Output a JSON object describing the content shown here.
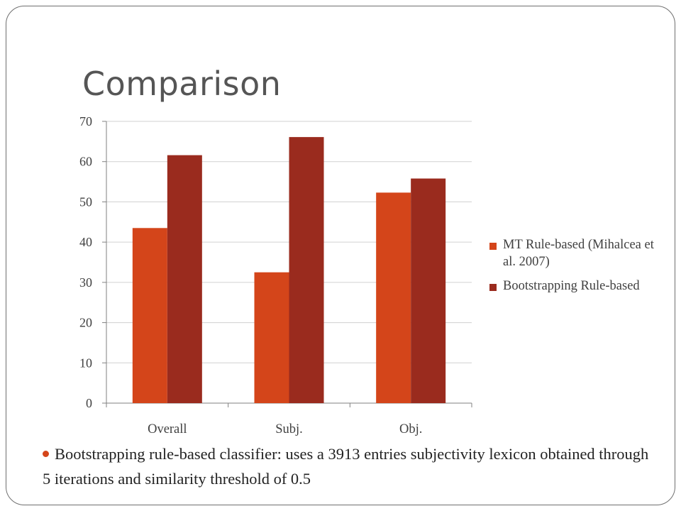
{
  "slide": {
    "title": "Comparison",
    "bullet": "Bootstrapping rule-based classifier: uses a 3913 entries subjectivity lexicon obtained through 5 iterations and similarity threshold of 0.5"
  },
  "colors": {
    "series1": "#d4451a",
    "series2": "#9a2b1e",
    "axis": "#808080",
    "grid": "#d0d0d0",
    "bullet": "#d4451a"
  },
  "chart_data": {
    "type": "bar",
    "title": "",
    "xlabel": "",
    "ylabel": "",
    "categories": [
      "Overall",
      "Subj.",
      "Obj."
    ],
    "series": [
      {
        "name": "MT Rule-based (Mihalcea et al. 2007)",
        "values": [
          43.5,
          32.5,
          52.3
        ]
      },
      {
        "name": "Bootstrapping Rule-based",
        "values": [
          61.6,
          66.1,
          55.8
        ]
      }
    ],
    "ylim": [
      0,
      70
    ],
    "yticks": [
      "0",
      "10",
      "20",
      "30",
      "40",
      "50",
      "60",
      "70"
    ],
    "grid": true,
    "legend_position": "right"
  }
}
